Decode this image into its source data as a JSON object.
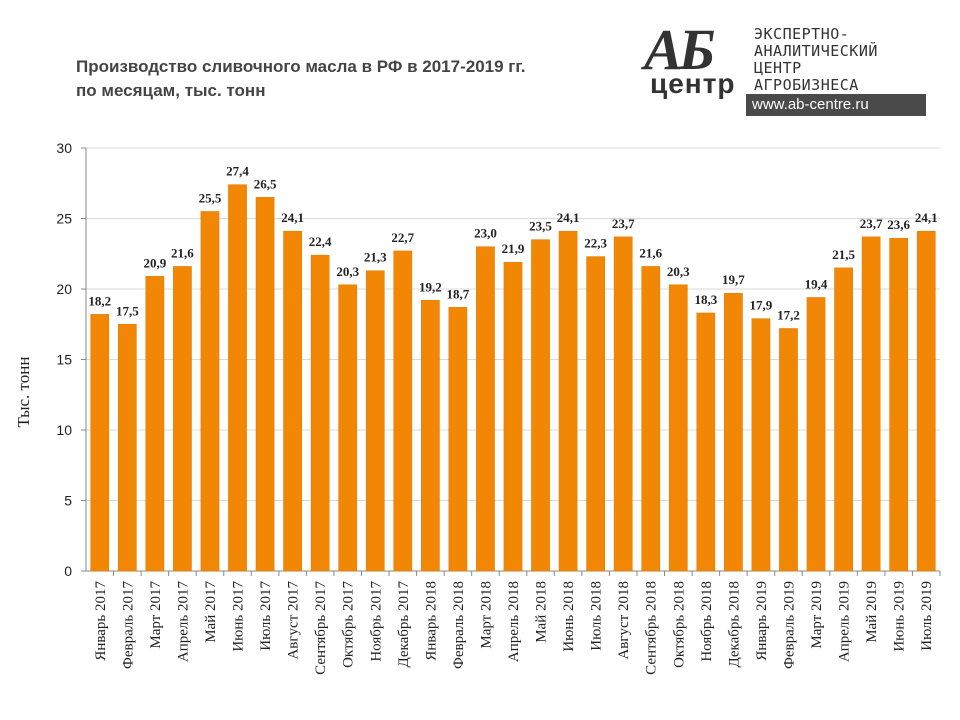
{
  "header": {
    "title_line1": "Производство сливочного масла в РФ в 2017-2019 гг.",
    "title_line2": "по месяцам, тыс. тонн"
  },
  "logo": {
    "mark_ab": "АБ",
    "mark_center": "центр",
    "line1": "ЭКСПЕРТНО-",
    "line2": "АНАЛИТИЧЕСКИЙ",
    "line3": "ЦЕНТР",
    "line4": "АГРОБИЗНЕСА",
    "url": "www.ab-centre.ru"
  },
  "colors": {
    "bar": "#F28705",
    "bar_edge": "#E07A00",
    "grid": "#D9D9D9",
    "axis": "#888888",
    "text": "#222222"
  },
  "chart_data": {
    "type": "bar",
    "title": "Производство сливочного масла в РФ в 2017-2019 гг. по месяцам, тыс. тонн",
    "xlabel": "",
    "ylabel": "Тыс. тонн",
    "ylim": [
      0,
      30
    ],
    "yticks": [
      0,
      5,
      10,
      15,
      20,
      25,
      30
    ],
    "grid": true,
    "categories": [
      "Январь 2017",
      "Февраль 2017",
      "Март 2017",
      "Апрель 2017",
      "Май 2017",
      "Июнь 2017",
      "Июль 2017",
      "Август 2017",
      "Сентябрь 2017",
      "Октябрь 2017",
      "Ноябрь 2017",
      "Декабрь 2017",
      "Январь 2018",
      "Февраль 2018",
      "Март 2018",
      "Апрель 2018",
      "Май 2018",
      "Июнь 2018",
      "Июль 2018",
      "Август 2018",
      "Сентябрь 2018",
      "Октябрь 2018",
      "Ноябрь 2018",
      "Декабрь 2018",
      "Январь 2019",
      "Февраль 2019",
      "Март 2019",
      "Апрель 2019",
      "Май 2019",
      "Июнь 2019",
      "Июль 2019"
    ],
    "values": [
      18.2,
      17.5,
      20.9,
      21.6,
      25.5,
      27.4,
      26.5,
      24.1,
      22.4,
      20.3,
      21.3,
      22.7,
      19.2,
      18.7,
      23.0,
      21.9,
      23.5,
      24.1,
      22.3,
      23.7,
      21.6,
      20.3,
      18.3,
      19.7,
      17.9,
      17.2,
      19.4,
      21.5,
      23.7,
      23.6,
      24.1
    ],
    "labels": [
      "18,2",
      "17,5",
      "20,9",
      "21,6",
      "25,5",
      "27,4",
      "26,5",
      "24,1",
      "22,4",
      "20,3",
      "21,3",
      "22,7",
      "19,2",
      "18,7",
      "23,0",
      "21,9",
      "23,5",
      "24,1",
      "22,3",
      "23,7",
      "21,6",
      "20,3",
      "18,3",
      "19,7",
      "17,9",
      "17,2",
      "19,4",
      "21,5",
      "23,7",
      "23,6",
      "24,1"
    ]
  }
}
